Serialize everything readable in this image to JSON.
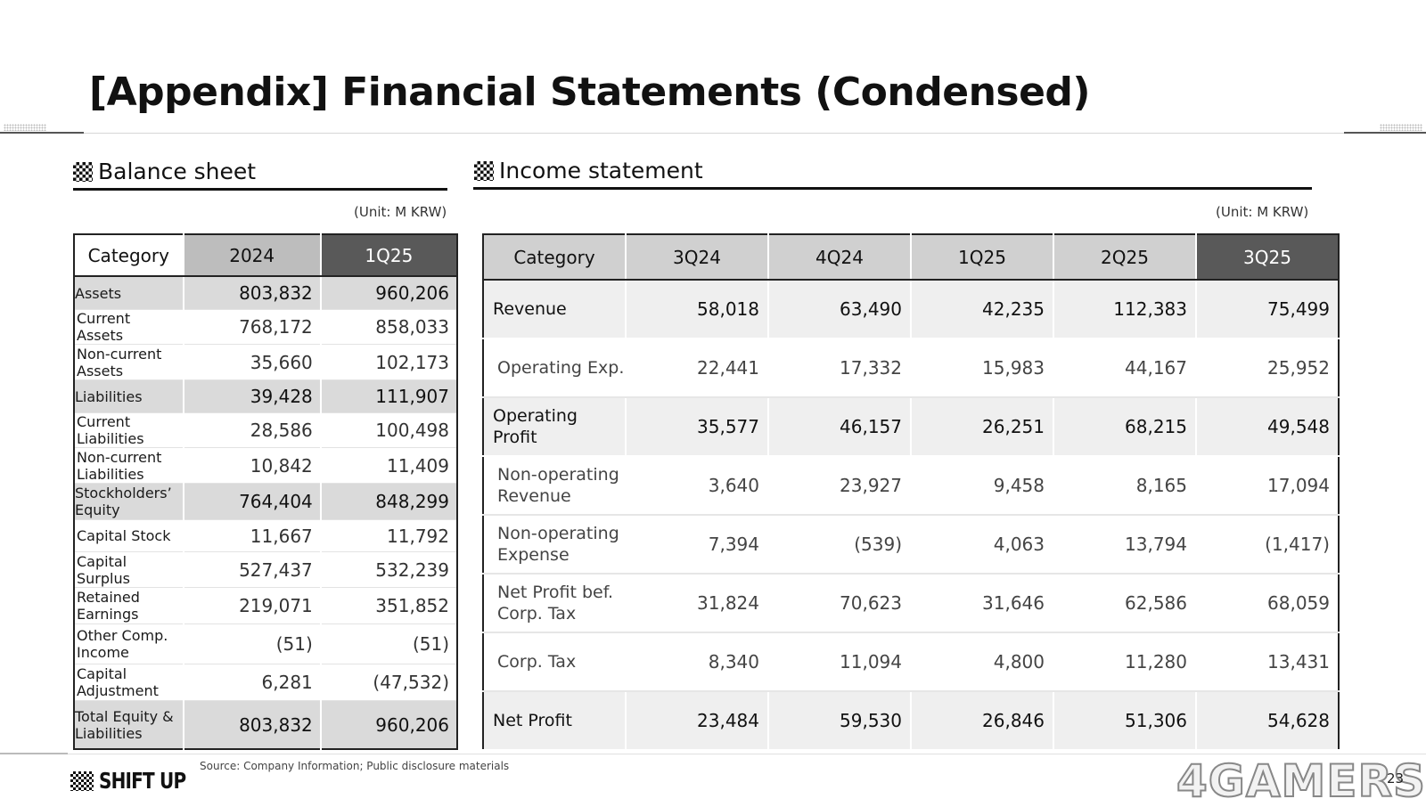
{
  "title": "[Appendix] Financial Statements (Condensed)",
  "balance_sheet": {
    "heading": "Balance sheet",
    "unit": "(Unit: M KRW)",
    "headers": [
      "Category",
      "2024",
      "1Q25"
    ],
    "rows": [
      {
        "label": "Assets",
        "v1": "803,832",
        "v2": "960,206"
      },
      {
        "label": "Current\nAssets",
        "v1": "768,172",
        "v2": "858,033"
      },
      {
        "label": "Non-current\nAssets",
        "v1": "35,660",
        "v2": "102,173"
      },
      {
        "label": "Liabilities",
        "v1": "39,428",
        "v2": "111,907"
      },
      {
        "label": "Current\nLiabilities",
        "v1": "28,586",
        "v2": "100,498"
      },
      {
        "label": "Non-current\nLiabilities",
        "v1": "10,842",
        "v2": "11,409"
      },
      {
        "label": "Stockholders’\nEquity",
        "v1": "764,404",
        "v2": "848,299"
      },
      {
        "label": "Capital Stock",
        "v1": "11,667",
        "v2": "11,792"
      },
      {
        "label": "Capital\nSurplus",
        "v1": "527,437",
        "v2": "532,239"
      },
      {
        "label": "Retained\nEarnings",
        "v1": "219,071",
        "v2": "351,852"
      },
      {
        "label": "Other Comp.\nIncome",
        "v1": "(51)",
        "v2": "(51)"
      },
      {
        "label": "Capital\nAdjustment",
        "v1": "6,281",
        "v2": "(47,532)"
      },
      {
        "label": "Total Equity &\nLiabilities",
        "v1": "803,832",
        "v2": "960,206"
      }
    ]
  },
  "income_statement": {
    "heading": "Income statement",
    "unit": "(Unit: M KRW)",
    "headers": [
      "Category",
      "3Q24",
      "4Q24",
      "1Q25",
      "2Q25",
      "3Q25"
    ],
    "rows": [
      {
        "label": "Revenue",
        "values": [
          "58,018",
          "63,490",
          "42,235",
          "112,383",
          "75,499"
        ]
      },
      {
        "label": "Operating Exp.",
        "values": [
          "22,441",
          "17,332",
          "15,983",
          "44,167",
          "25,952"
        ]
      },
      {
        "label": "Operating Profit",
        "values": [
          "35,577",
          "46,157",
          "26,251",
          "68,215",
          "49,548"
        ]
      },
      {
        "label": "Non-operating\nRevenue",
        "values": [
          "3,640",
          "23,927",
          "9,458",
          "8,165",
          "17,094"
        ]
      },
      {
        "label": "Non-operating\nExpense",
        "values": [
          "7,394",
          "(539)",
          "4,063",
          "13,794",
          "(1,417)"
        ]
      },
      {
        "label": "Net Profit bef.\nCorp. Tax",
        "values": [
          "31,824",
          "70,623",
          "31,646",
          "62,586",
          "68,059"
        ]
      },
      {
        "label": "Corp. Tax",
        "values": [
          "8,340",
          "11,094",
          "4,800",
          "11,280",
          "13,431"
        ]
      },
      {
        "label": "Net Profit",
        "values": [
          "23,484",
          "59,530",
          "26,846",
          "51,306",
          "54,628"
        ]
      }
    ]
  },
  "footer": {
    "logo_text": "SHIFT UP",
    "source": "Source: Company Information; Public disclosure materials",
    "watermark": "4GAMERS",
    "page_number": "23"
  }
}
